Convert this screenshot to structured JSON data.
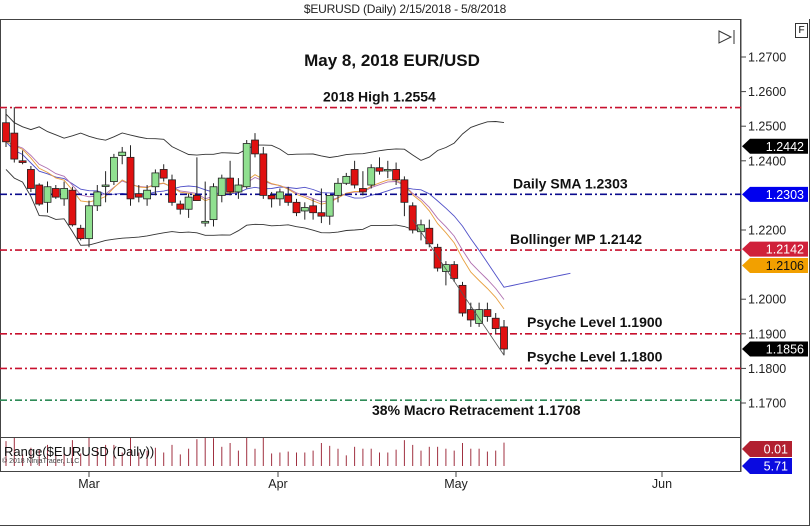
{
  "window": {
    "title": "$EURUSD (Daily)  2/15/2018 - 5/8/2018",
    "f_button": "F",
    "scroll_end_icon": "play-to-end-icon"
  },
  "chart_data": {
    "type": "candlestick",
    "title": "May 8, 2018 EUR/USD",
    "symbol": "$EURUSD",
    "timeframe": "Daily",
    "date_range": "2/15/2018 - 5/8/2018",
    "ylim": [
      1.164,
      1.274
    ],
    "y_ticks": [
      "1.2700",
      "1.2600",
      "1.2500",
      "1.2400",
      "1.2200",
      "1.2000",
      "1.1900",
      "1.1800",
      "1.1700"
    ],
    "x_ticks": [
      "Mar",
      "Apr",
      "May",
      "Jun"
    ],
    "annotations": [
      {
        "label": "2018 High 1.2554",
        "price": 1.2554,
        "color": "#c8102e",
        "style": "dash-dot"
      },
      {
        "label": "Daily SMA 1.2303",
        "price": 1.2303,
        "color": "#0a0a8c",
        "style": "dash-dot"
      },
      {
        "label": "Bollinger MP 1.2142",
        "price": 1.2142,
        "color": "#c8102e",
        "style": "dash-dot"
      },
      {
        "label": "Psyche Level 1.1900",
        "price": 1.19,
        "color": "#c8102e",
        "style": "dash-dot"
      },
      {
        "label": "Psyche Level 1.1800",
        "price": 1.18,
        "color": "#c8102e",
        "style": "dash-dot"
      },
      {
        "label": "38% Macro Retracement 1.1708",
        "price": 1.1708,
        "color": "#2e8b57",
        "style": "dash-dot"
      }
    ],
    "price_tags": [
      {
        "value": "1.2442",
        "bg": "#000000",
        "fg": "#ffffff"
      },
      {
        "value": "1.2303",
        "bg": "#0000ee",
        "fg": "#ffffff"
      },
      {
        "value": "1.2142",
        "bg": "#d0203a",
        "fg": "#ffffff"
      },
      {
        "value": "1.2106",
        "bg": "#f2a000",
        "fg": "#111111"
      },
      {
        "value": "1.1856",
        "bg": "#000000",
        "fg": "#ffffff"
      }
    ],
    "indicators": [
      {
        "name": "Bollinger Upper",
        "color": "#333333"
      },
      {
        "name": "Bollinger Lower",
        "color": "#333333"
      },
      {
        "name": "SMA (blue)",
        "color": "#5555cc"
      },
      {
        "name": "EMA (violet)",
        "color": "#b070b0"
      },
      {
        "name": "EMA (orange)",
        "color": "#e8a040"
      }
    ],
    "candles_ohlc": [
      [
        1.251,
        1.255,
        1.244,
        1.2455
      ],
      [
        1.248,
        1.2555,
        1.2395,
        1.2405
      ],
      [
        1.24,
        1.243,
        1.239,
        1.2395
      ],
      [
        1.2375,
        1.2385,
        1.231,
        1.232
      ],
      [
        1.233,
        1.2335,
        1.227,
        1.2275
      ],
      [
        1.228,
        1.234,
        1.225,
        1.2325
      ],
      [
        1.232,
        1.233,
        1.229,
        1.2295
      ],
      [
        1.229,
        1.234,
        1.227,
        1.232
      ],
      [
        1.2315,
        1.2325,
        1.221,
        1.2215
      ],
      [
        1.2205,
        1.2215,
        1.217,
        1.2175
      ],
      [
        1.2175,
        1.2285,
        1.215,
        1.227
      ],
      [
        1.227,
        1.233,
        1.2255,
        1.231
      ],
      [
        1.233,
        1.237,
        1.228,
        1.233
      ],
      [
        1.234,
        1.242,
        1.233,
        1.241
      ],
      [
        1.2415,
        1.244,
        1.239,
        1.2425
      ],
      [
        1.241,
        1.2445,
        1.227,
        1.229
      ],
      [
        1.2305,
        1.233,
        1.228,
        1.2295
      ],
      [
        1.229,
        1.233,
        1.227,
        1.2315
      ],
      [
        1.2325,
        1.2375,
        1.23,
        1.2365
      ],
      [
        1.2375,
        1.239,
        1.234,
        1.235
      ],
      [
        1.2345,
        1.236,
        1.227,
        1.228
      ],
      [
        1.2275,
        1.2285,
        1.2245,
        1.226
      ],
      [
        1.226,
        1.2305,
        1.2235,
        1.2295
      ],
      [
        1.23,
        1.241,
        1.229,
        1.2285
      ],
      [
        1.222,
        1.234,
        1.221,
        1.2225
      ],
      [
        1.223,
        1.2335,
        1.221,
        1.2325
      ],
      [
        1.23,
        1.236,
        1.228,
        1.235
      ],
      [
        1.235,
        1.24,
        1.23,
        1.231
      ],
      [
        1.231,
        1.235,
        1.229,
        1.233
      ],
      [
        1.2325,
        1.246,
        1.232,
        1.245
      ],
      [
        1.246,
        1.248,
        1.241,
        1.242
      ],
      [
        1.242,
        1.244,
        1.229,
        1.23
      ],
      [
        1.23,
        1.231,
        1.2265,
        1.229
      ],
      [
        1.229,
        1.232,
        1.227,
        1.231
      ],
      [
        1.23,
        1.2325,
        1.227,
        1.228
      ],
      [
        1.228,
        1.229,
        1.224,
        1.225
      ],
      [
        1.2255,
        1.228,
        1.223,
        1.2265
      ],
      [
        1.227,
        1.229,
        1.223,
        1.225
      ],
      [
        1.225,
        1.232,
        1.222,
        1.224
      ],
      [
        1.224,
        1.23,
        1.2215,
        1.23
      ],
      [
        1.23,
        1.235,
        1.228,
        1.2335
      ],
      [
        1.2335,
        1.2365,
        1.233,
        1.2355
      ],
      [
        1.2375,
        1.24,
        1.232,
        1.233
      ],
      [
        1.232,
        1.237,
        1.23,
        1.231
      ],
      [
        1.233,
        1.239,
        1.232,
        1.238
      ],
      [
        1.238,
        1.241,
        1.236,
        1.237
      ],
      [
        1.2375,
        1.24,
        1.235,
        1.2375
      ],
      [
        1.2375,
        1.2395,
        1.233,
        1.2345
      ],
      [
        1.2345,
        1.2355,
        1.224,
        1.228
      ],
      [
        1.227,
        1.228,
        1.219,
        1.22
      ],
      [
        1.2195,
        1.223,
        1.217,
        1.2215
      ],
      [
        1.2205,
        1.223,
        1.215,
        1.216
      ],
      [
        1.215,
        1.216,
        1.208,
        1.209
      ],
      [
        1.208,
        1.211,
        1.204,
        1.21
      ],
      [
        1.21,
        1.211,
        1.205,
        1.206
      ],
      [
        1.204,
        1.205,
        1.195,
        1.196
      ],
      [
        1.197,
        1.199,
        1.192,
        1.194
      ],
      [
        1.193,
        1.199,
        1.192,
        1.197
      ],
      [
        1.197,
        1.199,
        1.1935,
        1.195
      ],
      [
        1.1945,
        1.196,
        1.19,
        1.1915
      ],
      [
        1.192,
        1.194,
        1.1838,
        1.1856
      ]
    ],
    "range_indicator": {
      "label": "Range($EURUSD (Daily))",
      "tags": [
        {
          "value": "0.01",
          "bg": "#b22030",
          "fg": "#ffffff"
        },
        {
          "value": "5.71",
          "bg": "#0a0ae0",
          "fg": "#ffffff"
        }
      ]
    }
  },
  "footer": {
    "copyright": "© 2018 NinjaTrader, LLC"
  }
}
